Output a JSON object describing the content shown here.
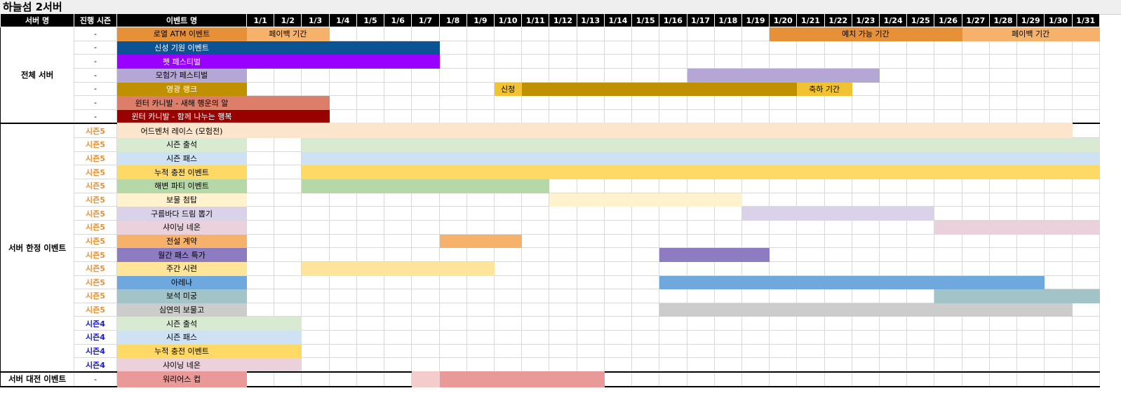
{
  "title": "하늘섬 2서버",
  "header": {
    "server": "서버 명",
    "season": "진행 시즌",
    "event": "이벤트 명",
    "days": [
      "1/1",
      "1/2",
      "1/3",
      "1/4",
      "1/5",
      "1/6",
      "1/7",
      "1/8",
      "1/9",
      "1/10",
      "1/11",
      "1/12",
      "1/13",
      "1/14",
      "1/15",
      "1/16",
      "1/17",
      "1/18",
      "1/19",
      "1/20",
      "1/21",
      "1/22",
      "1/23",
      "1/24",
      "1/25",
      "1/26",
      "1/27",
      "1/28",
      "1/29",
      "1/30",
      "1/31"
    ]
  },
  "colors": {
    "season5": "#e69138",
    "season4": "#1a1acc"
  },
  "groups": [
    {
      "label": "전체 서버",
      "rows": [
        {
          "season": "-",
          "name": "로열 ATM 이벤트",
          "color": "#e69138",
          "text": "#000",
          "segments": [
            {
              "from": 1,
              "to": 3,
              "label": "페이백 기간",
              "color": "#f6b26b"
            },
            {
              "from": 20,
              "to": 26,
              "label": "예치 가능 기간",
              "color": "#e69138"
            },
            {
              "from": 27,
              "to": 31,
              "label": "페이백 기간",
              "color": "#f6b26b"
            }
          ]
        },
        {
          "season": "-",
          "name": "신성 기원 이벤트",
          "color": "#0b5394",
          "text": "#fff",
          "segments": [
            {
              "from": 1,
              "to": 7,
              "label": "",
              "color": "#0b5394"
            }
          ]
        },
        {
          "season": "-",
          "name": "펫 페스티벌",
          "color": "#9900ff",
          "text": "#fff",
          "segments": [
            {
              "from": 1,
              "to": 7,
              "label": "",
              "color": "#9900ff"
            }
          ]
        },
        {
          "season": "-",
          "name": "모험가 페스티벌",
          "color": "#b4a7d6",
          "text": "#000",
          "segments": [
            {
              "from": 17,
              "to": 23,
              "label": "",
              "color": "#b4a7d6"
            }
          ]
        },
        {
          "season": "-",
          "name": "영광 랭크",
          "color": "#bf9000",
          "text": "#fff",
          "segments": [
            {
              "from": 10,
              "to": 10,
              "label": "신청",
              "color": "#f1c232"
            },
            {
              "from": 11,
              "to": 20,
              "label": "",
              "color": "#bf9000"
            },
            {
              "from": 21,
              "to": 22,
              "label": "축하 기간",
              "color": "#f1c232"
            }
          ]
        },
        {
          "season": "-",
          "name": "윈터 카니발 - 새해 행운의 알",
          "color": "#dd7e6b",
          "text": "#000",
          "segments": [
            {
              "from": 1,
              "to": 3,
              "label": "",
              "color": "#dd7e6b"
            }
          ]
        },
        {
          "season": "-",
          "name": "윈터 카니발 - 함께 나누는 행복",
          "color": "#990000",
          "text": "#fff",
          "segments": [
            {
              "from": 1,
              "to": 3,
              "label": "",
              "color": "#990000"
            }
          ]
        }
      ]
    },
    {
      "label": "서버 한정 이벤트",
      "rows": [
        {
          "season": "시즌5",
          "name": "어드벤처 레이스 (모험전)",
          "color": "#fce5cd",
          "text": "#000",
          "segments": [
            {
              "from": 1,
              "to": 30,
              "label": "",
              "color": "#fce5cd"
            }
          ]
        },
        {
          "season": "시즌5",
          "name": "시즌 출석",
          "color": "#d9ead3",
          "text": "#000",
          "segments": [
            {
              "from": 3,
              "to": 31,
              "label": "",
              "color": "#d9ead3"
            }
          ]
        },
        {
          "season": "시즌5",
          "name": "시즌 패스",
          "color": "#cfe2f3",
          "text": "#000",
          "segments": [
            {
              "from": 3,
              "to": 31,
              "label": "",
              "color": "#cfe2f3"
            }
          ]
        },
        {
          "season": "시즌5",
          "name": "누적 충전 이벤트",
          "color": "#ffd966",
          "text": "#000",
          "segments": [
            {
              "from": 3,
              "to": 31,
              "label": "",
              "color": "#ffd966"
            }
          ]
        },
        {
          "season": "시즌5",
          "name": "해변 파티 이벤트",
          "color": "#b6d7a8",
          "text": "#000",
          "segments": [
            {
              "from": 3,
              "to": 11,
              "label": "",
              "color": "#b6d7a8"
            }
          ]
        },
        {
          "season": "시즌5",
          "name": "보물 첨탑",
          "color": "#fff2cc",
          "text": "#000",
          "segments": [
            {
              "from": 12,
              "to": 18,
              "label": "",
              "color": "#fff2cc"
            }
          ]
        },
        {
          "season": "시즌5",
          "name": "구름바다 드림 뽑기",
          "color": "#d9d2e9",
          "text": "#000",
          "segments": [
            {
              "from": 19,
              "to": 25,
              "label": "",
              "color": "#d9d2e9"
            }
          ]
        },
        {
          "season": "시즌5",
          "name": "샤이닝 네온",
          "color": "#ead1dc",
          "text": "#000",
          "segments": [
            {
              "from": 26,
              "to": 31,
              "label": "",
              "color": "#ead1dc"
            }
          ]
        },
        {
          "season": "시즌5",
          "name": "전설 계약",
          "color": "#f6b26b",
          "text": "#000",
          "segments": [
            {
              "from": 8,
              "to": 10,
              "label": "",
              "color": "#f6b26b"
            }
          ]
        },
        {
          "season": "시즌5",
          "name": "월간 패스 특가",
          "color": "#8e7cc3",
          "text": "#000",
          "segments": [
            {
              "from": 16,
              "to": 19,
              "label": "",
              "color": "#8e7cc3"
            }
          ]
        },
        {
          "season": "시즌5",
          "name": "주간 시련",
          "color": "#ffe599",
          "text": "#000",
          "segments": [
            {
              "from": 3,
              "to": 9,
              "label": "",
              "color": "#ffe599"
            }
          ]
        },
        {
          "season": "시즌5",
          "name": "아레나",
          "color": "#6fa8dc",
          "text": "#000",
          "segments": [
            {
              "from": 16,
              "to": 29,
              "label": "",
              "color": "#6fa8dc"
            }
          ]
        },
        {
          "season": "시즌5",
          "name": "보석 미궁",
          "color": "#a2c4c9",
          "text": "#000",
          "segments": [
            {
              "from": 26,
              "to": 31,
              "label": "",
              "color": "#a2c4c9"
            }
          ]
        },
        {
          "season": "시즌5",
          "name": "심연의 보물고",
          "color": "#cccccc",
          "text": "#000",
          "segments": [
            {
              "from": 16,
              "to": 30,
              "label": "",
              "color": "#cccccc"
            }
          ]
        },
        {
          "season": "시즌4",
          "name": "시즌 출석",
          "color": "#d9ead3",
          "text": "#000",
          "segments": [
            {
              "from": 1,
              "to": 2,
              "label": "",
              "color": "#d9ead3"
            }
          ]
        },
        {
          "season": "시즌4",
          "name": "시즌 패스",
          "color": "#cfe2f3",
          "text": "#000",
          "segments": [
            {
              "from": 1,
              "to": 2,
              "label": "",
              "color": "#cfe2f3"
            }
          ]
        },
        {
          "season": "시즌4",
          "name": "누적 충전 이벤트",
          "color": "#ffd966",
          "text": "#000",
          "segments": [
            {
              "from": 1,
              "to": 2,
              "label": "",
              "color": "#ffd966"
            }
          ]
        },
        {
          "season": "시즌4",
          "name": "샤이닝 네온",
          "color": "#ead1dc",
          "text": "#000",
          "segments": [
            {
              "from": 1,
              "to": 2,
              "label": "",
              "color": "#ead1dc"
            }
          ]
        }
      ]
    },
    {
      "label": "서버 대전 이벤트",
      "rows": [
        {
          "season": "-",
          "name": "워리어스 컵",
          "color": "#ea9999",
          "text": "#000",
          "segments": [
            {
              "from": 7,
              "to": 7,
              "label": "",
              "color": "#f4cccc"
            },
            {
              "from": 8,
              "to": 13,
              "label": "",
              "color": "#ea9999"
            }
          ]
        }
      ]
    }
  ]
}
